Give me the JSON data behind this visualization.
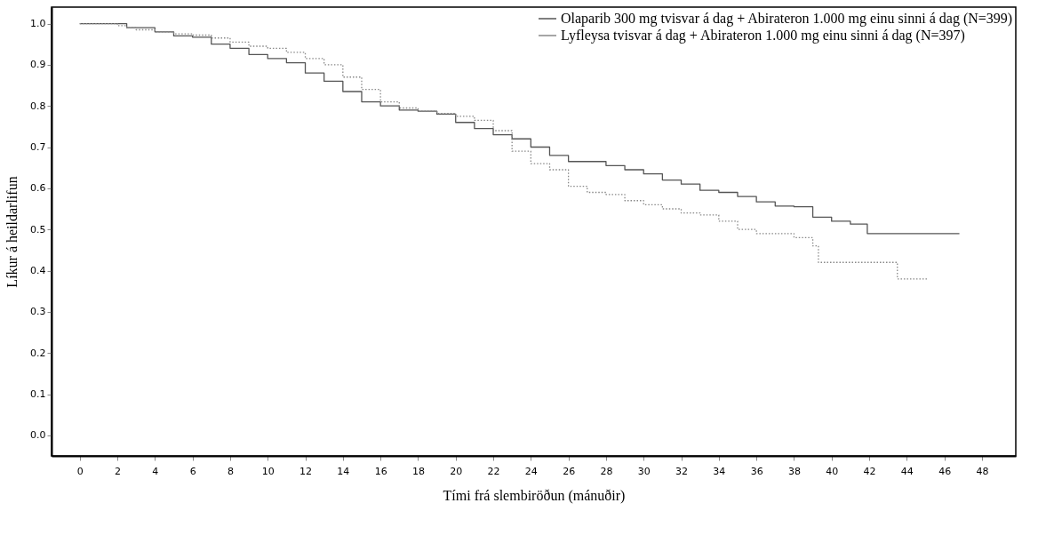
{
  "chart_data": {
    "type": "step",
    "xlabel": "Tími frá slembiröðun (mánuðir)",
    "ylabel": "Líkur á heildarlifun",
    "xlim": [
      -1.5,
      49.8
    ],
    "xticks": [
      0,
      2,
      4,
      6,
      8,
      10,
      12,
      14,
      16,
      18,
      20,
      22,
      24,
      26,
      28,
      30,
      32,
      34,
      36,
      38,
      40,
      42,
      44,
      46,
      48
    ],
    "ylim": [
      -0.05,
      1.04
    ],
    "yticks": [
      {
        "value": 0,
        "label": "0.0"
      },
      0.1,
      0.2,
      0.3,
      0.4,
      0.5,
      0.6,
      0.7,
      0.8,
      0.9,
      {
        "value": 1,
        "label": "1.0"
      }
    ],
    "grid": false,
    "legend": "top right",
    "marker": "none",
    "series": [
      {
        "name": "Olaparib 300 mg tvisvar á dag + Abirateron 1.000 mg einu sinni á dag (N=399)",
        "color": "#555555",
        "line_style": "solid",
        "x": [
          0,
          2,
          2.5,
          4,
          5,
          6,
          7,
          8,
          9,
          10,
          11,
          12,
          13,
          14,
          15,
          16,
          17,
          18,
          19,
          20,
          21,
          22,
          23,
          24,
          25,
          26,
          27,
          28,
          29,
          30,
          31,
          32,
          33,
          34,
          35,
          36,
          37,
          38,
          39,
          40,
          41,
          41.9,
          46.8
        ],
        "values": [
          1.0,
          1.0,
          0.99,
          0.98,
          0.97,
          0.967,
          0.95,
          0.94,
          0.925,
          0.915,
          0.905,
          0.88,
          0.86,
          0.835,
          0.81,
          0.8,
          0.79,
          0.787,
          0.78,
          0.76,
          0.745,
          0.73,
          0.72,
          0.7,
          0.68,
          0.665,
          0.665,
          0.655,
          0.645,
          0.635,
          0.62,
          0.61,
          0.595,
          0.59,
          0.58,
          0.567,
          0.557,
          0.555,
          0.53,
          0.52,
          0.513,
          0.49,
          0.49
        ]
      },
      {
        "name": "Lyfleysa tvisvar á dag + Abirateron 1.000 mg einu sinni á dag (N=397)",
        "color": "#888888",
        "line_style": "dotted",
        "x": [
          0,
          2,
          2.5,
          3,
          4,
          5,
          6,
          7,
          8,
          9,
          10,
          11,
          12,
          13,
          14,
          15,
          16,
          17,
          18,
          19,
          20,
          21,
          22,
          23,
          24,
          25,
          26,
          27,
          28,
          29,
          30,
          31,
          32,
          33,
          34,
          35,
          36,
          37,
          38,
          39,
          39.3,
          43.5,
          45.1
        ],
        "values": [
          1.0,
          0.995,
          0.99,
          0.985,
          0.98,
          0.975,
          0.972,
          0.965,
          0.955,
          0.945,
          0.94,
          0.93,
          0.915,
          0.9,
          0.87,
          0.84,
          0.81,
          0.795,
          0.787,
          0.782,
          0.775,
          0.765,
          0.74,
          0.69,
          0.66,
          0.645,
          0.605,
          0.59,
          0.585,
          0.57,
          0.56,
          0.55,
          0.54,
          0.535,
          0.52,
          0.5,
          0.49,
          0.49,
          0.48,
          0.46,
          0.42,
          0.38,
          0.38
        ]
      }
    ]
  }
}
